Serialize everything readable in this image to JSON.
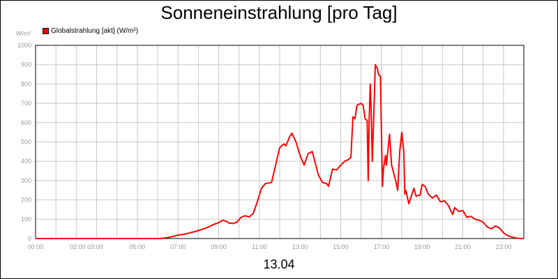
{
  "title": "Sonneneinstrahlung [pro Tag]",
  "date_label": "13.04",
  "chart_data": {
    "type": "line",
    "title": "Sonneneinstrahlung [pro Tag]",
    "ylabel": "W/m²",
    "xlabel": "13.04",
    "xlim": [
      0,
      24
    ],
    "ylim": [
      0,
      1000
    ],
    "grid": true,
    "legend_position": "top-left",
    "y_ticks": [
      "0",
      "100",
      "200",
      "300",
      "400",
      "500",
      "600",
      "700",
      "800",
      "900",
      "1000"
    ],
    "x_ticks": [
      {
        "t": 0,
        "label": "00:00"
      },
      {
        "t": 2.5,
        "label": "02:00 03:00"
      },
      {
        "t": 5,
        "label": "05:00"
      },
      {
        "t": 7,
        "label": "07:00"
      },
      {
        "t": 9,
        "label": "09:00"
      },
      {
        "t": 11,
        "label": "11:00"
      },
      {
        "t": 13,
        "label": "13:00"
      },
      {
        "t": 15,
        "label": "15:00"
      },
      {
        "t": 17,
        "label": "17:00"
      },
      {
        "t": 19,
        "label": "19:00"
      },
      {
        "t": 21,
        "label": "21:00"
      },
      {
        "t": 23,
        "label": "23:00"
      }
    ],
    "series": [
      {
        "name": "Globalstrahlung [akt] (W/m²)",
        "color": "#ff0000",
        "points": [
          [
            0,
            0
          ],
          [
            6.1,
            0
          ],
          [
            6.5,
            5
          ],
          [
            6.8,
            12
          ],
          [
            7.0,
            18
          ],
          [
            7.3,
            22
          ],
          [
            7.6,
            30
          ],
          [
            7.9,
            38
          ],
          [
            8.2,
            48
          ],
          [
            8.5,
            60
          ],
          [
            8.8,
            75
          ],
          [
            9.0,
            82
          ],
          [
            9.2,
            95
          ],
          [
            9.4,
            88
          ],
          [
            9.5,
            80
          ],
          [
            9.7,
            78
          ],
          [
            9.9,
            85
          ],
          [
            10.1,
            110
          ],
          [
            10.3,
            118
          ],
          [
            10.5,
            112
          ],
          [
            10.7,
            130
          ],
          [
            10.9,
            190
          ],
          [
            11.1,
            260
          ],
          [
            11.3,
            285
          ],
          [
            11.6,
            290
          ],
          [
            11.8,
            380
          ],
          [
            12.0,
            470
          ],
          [
            12.2,
            490
          ],
          [
            12.3,
            480
          ],
          [
            12.5,
            530
          ],
          [
            12.6,
            545
          ],
          [
            12.8,
            500
          ],
          [
            13.0,
            430
          ],
          [
            13.2,
            380
          ],
          [
            13.4,
            440
          ],
          [
            13.6,
            450
          ],
          [
            13.7,
            410
          ],
          [
            13.9,
            330
          ],
          [
            14.1,
            290
          ],
          [
            14.3,
            285
          ],
          [
            14.4,
            270
          ],
          [
            14.6,
            360
          ],
          [
            14.8,
            355
          ],
          [
            15.0,
            380
          ],
          [
            15.2,
            400
          ],
          [
            15.4,
            410
          ],
          [
            15.5,
            420
          ],
          [
            15.6,
            630
          ],
          [
            15.7,
            620
          ],
          [
            15.8,
            690
          ],
          [
            16.0,
            700
          ],
          [
            16.1,
            690
          ],
          [
            16.2,
            620
          ],
          [
            16.3,
            610
          ],
          [
            16.35,
            300
          ],
          [
            16.4,
            620
          ],
          [
            16.45,
            800
          ],
          [
            16.5,
            650
          ],
          [
            16.55,
            400
          ],
          [
            16.6,
            560
          ],
          [
            16.7,
            900
          ],
          [
            16.8,
            880
          ],
          [
            16.85,
            850
          ],
          [
            16.95,
            840
          ],
          [
            17.05,
            270
          ],
          [
            17.1,
            360
          ],
          [
            17.2,
            430
          ],
          [
            17.25,
            380
          ],
          [
            17.35,
            490
          ],
          [
            17.4,
            540
          ],
          [
            17.5,
            380
          ],
          [
            17.6,
            340
          ],
          [
            17.7,
            300
          ],
          [
            17.8,
            250
          ],
          [
            17.85,
            350
          ],
          [
            17.9,
            450
          ],
          [
            18.0,
            550
          ],
          [
            18.1,
            450
          ],
          [
            18.15,
            230
          ],
          [
            18.2,
            250
          ],
          [
            18.35,
            180
          ],
          [
            18.5,
            230
          ],
          [
            18.6,
            260
          ],
          [
            18.7,
            220
          ],
          [
            18.9,
            225
          ],
          [
            19.0,
            280
          ],
          [
            19.15,
            270
          ],
          [
            19.3,
            230
          ],
          [
            19.5,
            210
          ],
          [
            19.7,
            225
          ],
          [
            19.9,
            190
          ],
          [
            20.1,
            195
          ],
          [
            20.3,
            170
          ],
          [
            20.5,
            125
          ],
          [
            20.6,
            160
          ],
          [
            20.8,
            140
          ],
          [
            21.0,
            145
          ],
          [
            21.2,
            110
          ],
          [
            21.4,
            115
          ],
          [
            21.6,
            100
          ],
          [
            21.8,
            95
          ],
          [
            22.0,
            85
          ],
          [
            22.2,
            60
          ],
          [
            22.4,
            50
          ],
          [
            22.6,
            65
          ],
          [
            22.8,
            55
          ],
          [
            23.0,
            30
          ],
          [
            23.2,
            15
          ],
          [
            23.4,
            8
          ],
          [
            23.6,
            3
          ],
          [
            23.8,
            1
          ],
          [
            24,
            0
          ]
        ]
      }
    ]
  }
}
